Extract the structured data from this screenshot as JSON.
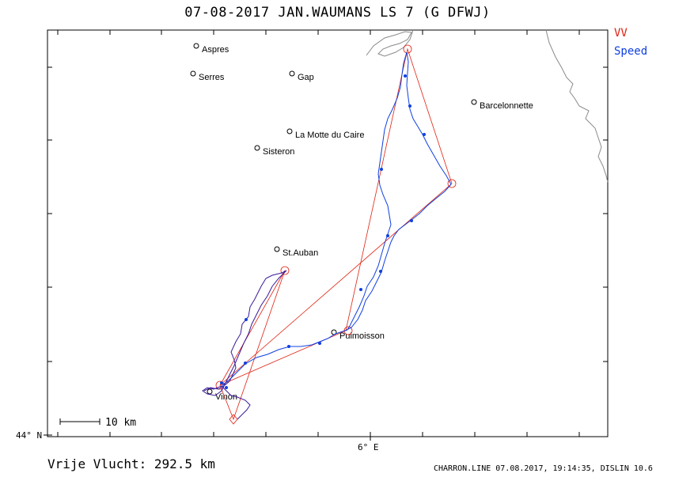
{
  "title": "07-08-2017   JAN.WAUMANS   LS 7 (G DFWJ)",
  "legend": {
    "vv": "VV",
    "speed": "Speed"
  },
  "colors": {
    "task": "#e02010",
    "track": "#1040e0",
    "track_dark": "#3a1a9a",
    "coast": "#8a8a8a",
    "frame": "#000000"
  },
  "axes": {
    "lat_label": "44° N",
    "lon_label": "6° E"
  },
  "scale": {
    "label": "10 km"
  },
  "places": [
    {
      "name": "Aspres"
    },
    {
      "name": "Serres"
    },
    {
      "name": "Gap"
    },
    {
      "name": "Barcelonnette"
    },
    {
      "name": "La Motte du Caire"
    },
    {
      "name": "Sisteron"
    },
    {
      "name": "St.Auban"
    },
    {
      "name": "Puimoisson"
    },
    {
      "name": "Vinon"
    }
  ],
  "footer": {
    "distance": "Vrije Vlucht:  292.5 km",
    "credits": "CHARRON.LINE 07.08.2017, 19:14:35, DISLIN 10.6"
  }
}
